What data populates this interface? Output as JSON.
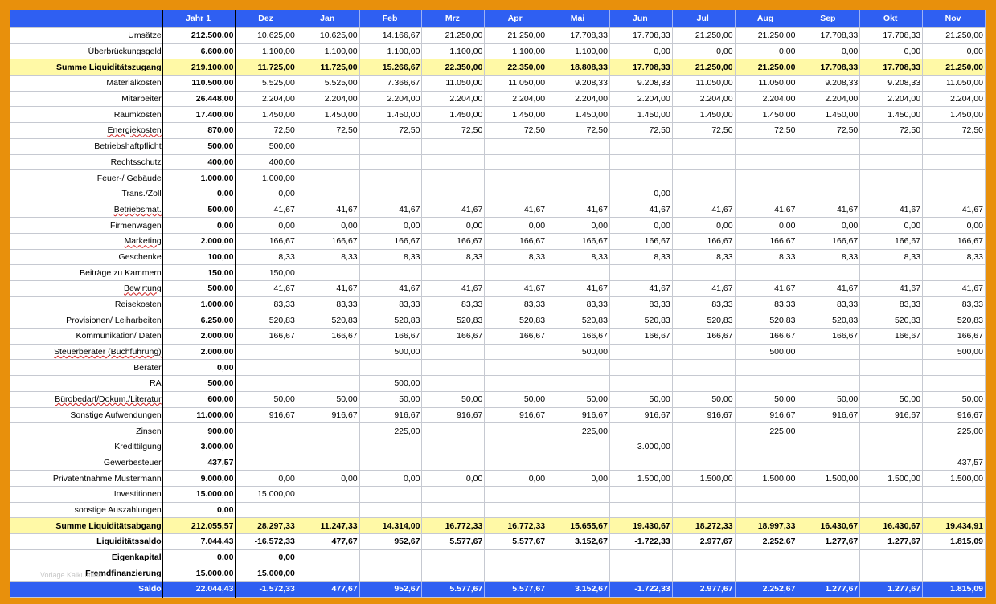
{
  "header": {
    "label": "",
    "columns": [
      "Jahr 1",
      "Dez",
      "Jan",
      "Feb",
      "Mrz",
      "Apr",
      "Mai",
      "Jun",
      "Jul",
      "Aug",
      "Sep",
      "Okt",
      "Nov"
    ]
  },
  "rows": [
    {
      "label": "Umsätze",
      "style": "normal",
      "values": [
        "212.500,00",
        "10.625,00",
        "10.625,00",
        "14.166,67",
        "21.250,00",
        "21.250,00",
        "17.708,33",
        "17.708,33",
        "21.250,00",
        "21.250,00",
        "17.708,33",
        "17.708,33",
        "21.250,00"
      ]
    },
    {
      "label": "Überbrückungsgeld",
      "style": "normal",
      "values": [
        "6.600,00",
        "1.100,00",
        "1.100,00",
        "1.100,00",
        "1.100,00",
        "1.100,00",
        "1.100,00",
        "0,00",
        "0,00",
        "0,00",
        "0,00",
        "0,00",
        "0,00"
      ]
    },
    {
      "label": "Summe Liquiditätszugang",
      "style": "sum",
      "values": [
        "219.100,00",
        "11.725,00",
        "11.725,00",
        "15.266,67",
        "22.350,00",
        "22.350,00",
        "18.808,33",
        "17.708,33",
        "21.250,00",
        "21.250,00",
        "17.708,33",
        "17.708,33",
        "21.250,00"
      ]
    },
    {
      "label": "Materialkosten",
      "style": "normal",
      "values": [
        "110.500,00",
        "5.525,00",
        "5.525,00",
        "7.366,67",
        "11.050,00",
        "11.050,00",
        "9.208,33",
        "9.208,33",
        "11.050,00",
        "11.050,00",
        "9.208,33",
        "9.208,33",
        "11.050,00"
      ]
    },
    {
      "label": "Mitarbeiter",
      "style": "normal",
      "values": [
        "26.448,00",
        "2.204,00",
        "2.204,00",
        "2.204,00",
        "2.204,00",
        "2.204,00",
        "2.204,00",
        "2.204,00",
        "2.204,00",
        "2.204,00",
        "2.204,00",
        "2.204,00",
        "2.204,00"
      ]
    },
    {
      "label": "Raumkosten",
      "style": "normal",
      "values": [
        "17.400,00",
        "1.450,00",
        "1.450,00",
        "1.450,00",
        "1.450,00",
        "1.450,00",
        "1.450,00",
        "1.450,00",
        "1.450,00",
        "1.450,00",
        "1.450,00",
        "1.450,00",
        "1.450,00"
      ]
    },
    {
      "label": "Energiekosten",
      "style": "normal",
      "values": [
        "870,00",
        "72,50",
        "72,50",
        "72,50",
        "72,50",
        "72,50",
        "72,50",
        "72,50",
        "72,50",
        "72,50",
        "72,50",
        "72,50",
        "72,50"
      ]
    },
    {
      "label": "Betriebshaftpflicht",
      "style": "normal",
      "values": [
        "500,00",
        "500,00",
        "",
        "",
        "",
        "",
        "",
        "",
        "",
        "",
        "",
        "",
        ""
      ]
    },
    {
      "label": "Rechtsschutz",
      "style": "normal",
      "values": [
        "400,00",
        "400,00",
        "",
        "",
        "",
        "",
        "",
        "",
        "",
        "",
        "",
        "",
        ""
      ]
    },
    {
      "label": "Feuer-/ Gebäude",
      "style": "normal",
      "values": [
        "1.000,00",
        "1.000,00",
        "",
        "",
        "",
        "",
        "",
        "",
        "",
        "",
        "",
        "",
        ""
      ]
    },
    {
      "label": "Trans./Zoll",
      "style": "normal",
      "values": [
        "0,00",
        "0,00",
        "",
        "",
        "",
        "",
        "",
        "0,00",
        "",
        "",
        "",
        "",
        ""
      ]
    },
    {
      "label": "Betriebsmat.",
      "style": "normal",
      "values": [
        "500,00",
        "41,67",
        "41,67",
        "41,67",
        "41,67",
        "41,67",
        "41,67",
        "41,67",
        "41,67",
        "41,67",
        "41,67",
        "41,67",
        "41,67"
      ]
    },
    {
      "label": "Firmenwagen",
      "style": "normal",
      "values": [
        "0,00",
        "0,00",
        "0,00",
        "0,00",
        "0,00",
        "0,00",
        "0,00",
        "0,00",
        "0,00",
        "0,00",
        "0,00",
        "0,00",
        "0,00"
      ]
    },
    {
      "label": "Marketing",
      "style": "normal",
      "values": [
        "2.000,00",
        "166,67",
        "166,67",
        "166,67",
        "166,67",
        "166,67",
        "166,67",
        "166,67",
        "166,67",
        "166,67",
        "166,67",
        "166,67",
        "166,67"
      ]
    },
    {
      "label": "Geschenke",
      "style": "normal",
      "values": [
        "100,00",
        "8,33",
        "8,33",
        "8,33",
        "8,33",
        "8,33",
        "8,33",
        "8,33",
        "8,33",
        "8,33",
        "8,33",
        "8,33",
        "8,33"
      ]
    },
    {
      "label": "Beiträge zu Kammern",
      "style": "normal",
      "values": [
        "150,00",
        "150,00",
        "",
        "",
        "",
        "",
        "",
        "",
        "",
        "",
        "",
        "",
        ""
      ]
    },
    {
      "label": "Bewirtung",
      "style": "normal",
      "values": [
        "500,00",
        "41,67",
        "41,67",
        "41,67",
        "41,67",
        "41,67",
        "41,67",
        "41,67",
        "41,67",
        "41,67",
        "41,67",
        "41,67",
        "41,67"
      ]
    },
    {
      "label": "Reisekosten",
      "style": "normal",
      "values": [
        "1.000,00",
        "83,33",
        "83,33",
        "83,33",
        "83,33",
        "83,33",
        "83,33",
        "83,33",
        "83,33",
        "83,33",
        "83,33",
        "83,33",
        "83,33"
      ]
    },
    {
      "label": "Provisionen/ Leiharbeiten",
      "style": "normal",
      "values": [
        "6.250,00",
        "520,83",
        "520,83",
        "520,83",
        "520,83",
        "520,83",
        "520,83",
        "520,83",
        "520,83",
        "520,83",
        "520,83",
        "520,83",
        "520,83"
      ]
    },
    {
      "label": "Kommunikation/ Daten",
      "style": "normal",
      "values": [
        "2.000,00",
        "166,67",
        "166,67",
        "166,67",
        "166,67",
        "166,67",
        "166,67",
        "166,67",
        "166,67",
        "166,67",
        "166,67",
        "166,67",
        "166,67"
      ]
    },
    {
      "label": "Steuerberater (Buchführung)",
      "style": "normal",
      "values": [
        "2.000,00",
        "",
        "",
        "500,00",
        "",
        "",
        "500,00",
        "",
        "",
        "500,00",
        "",
        "",
        "500,00"
      ]
    },
    {
      "label": "Berater",
      "style": "normal",
      "values": [
        "0,00",
        "",
        "",
        "",
        "",
        "",
        "",
        "",
        "",
        "",
        "",
        "",
        ""
      ]
    },
    {
      "label": "RA",
      "style": "normal",
      "values": [
        "500,00",
        "",
        "",
        "500,00",
        "",
        "",
        "",
        "",
        "",
        "",
        "",
        "",
        ""
      ]
    },
    {
      "label": "Bürobedarf/Dokum./Literatur",
      "style": "normal",
      "values": [
        "600,00",
        "50,00",
        "50,00",
        "50,00",
        "50,00",
        "50,00",
        "50,00",
        "50,00",
        "50,00",
        "50,00",
        "50,00",
        "50,00",
        "50,00"
      ]
    },
    {
      "label": "Sonstige Aufwendungen",
      "style": "normal",
      "values": [
        "11.000,00",
        "916,67",
        "916,67",
        "916,67",
        "916,67",
        "916,67",
        "916,67",
        "916,67",
        "916,67",
        "916,67",
        "916,67",
        "916,67",
        "916,67"
      ]
    },
    {
      "label": "Zinsen",
      "style": "normal",
      "values": [
        "900,00",
        "",
        "",
        "225,00",
        "",
        "",
        "225,00",
        "",
        "",
        "225,00",
        "",
        "",
        "225,00"
      ]
    },
    {
      "label": "Kredittilgung",
      "style": "normal",
      "values": [
        "3.000,00",
        "",
        "",
        "",
        "",
        "",
        "",
        "3.000,00",
        "",
        "",
        "",
        "",
        ""
      ]
    },
    {
      "label": "Gewerbesteuer",
      "style": "normal",
      "values": [
        "437,57",
        "",
        "",
        "",
        "",
        "",
        "",
        "",
        "",
        "",
        "",
        "",
        "437,57"
      ]
    },
    {
      "label": "Privatentnahme Mustermann",
      "style": "normal",
      "values": [
        "9.000,00",
        "0,00",
        "0,00",
        "0,00",
        "0,00",
        "0,00",
        "0,00",
        "1.500,00",
        "1.500,00",
        "1.500,00",
        "1.500,00",
        "1.500,00",
        "1.500,00"
      ]
    },
    {
      "label": "Investitionen",
      "style": "normal",
      "values": [
        "15.000,00",
        "15.000,00",
        "",
        "",
        "",
        "",
        "",
        "",
        "",
        "",
        "",
        "",
        ""
      ]
    },
    {
      "label": "sonstige Auszahlungen",
      "style": "normal",
      "values": [
        "0,00",
        "",
        "",
        "",
        "",
        "",
        "",
        "",
        "",
        "",
        "",
        "",
        ""
      ]
    },
    {
      "label": "Summe Liquiditätsabgang",
      "style": "sum",
      "values": [
        "212.055,57",
        "28.297,33",
        "11.247,33",
        "14.314,00",
        "16.772,33",
        "16.772,33",
        "15.655,67",
        "19.430,67",
        "18.272,33",
        "18.997,33",
        "16.430,67",
        "16.430,67",
        "19.434,91"
      ]
    },
    {
      "label": "Liquiditätssaldo",
      "style": "bold",
      "values": [
        "7.044,43",
        "-16.572,33",
        "477,67",
        "952,67",
        "5.577,67",
        "5.577,67",
        "3.152,67",
        "-1.722,33",
        "2.977,67",
        "2.252,67",
        "1.277,67",
        "1.277,67",
        "1.815,09"
      ]
    },
    {
      "label": "Eigenkapital",
      "style": "bold",
      "values": [
        "0,00",
        "0,00",
        "",
        "",
        "",
        "",
        "",
        "",
        "",
        "",
        "",
        "",
        ""
      ]
    },
    {
      "label": "Fremdfinanzierung",
      "style": "bold",
      "values": [
        "15.000,00",
        "15.000,00",
        "",
        "",
        "",
        "",
        "",
        "",
        "",
        "",
        "",
        "",
        ""
      ]
    },
    {
      "label": "Saldo",
      "style": "saldo",
      "values": [
        "22.044,43",
        "-1.572,33",
        "477,67",
        "952,67",
        "5.577,67",
        "5.577,67",
        "3.152,67",
        "-1.722,33",
        "2.977,67",
        "2.252,67",
        "1.277,67",
        "1.277,67",
        "1.815,09"
      ]
    }
  ],
  "watermark": "Vorlage Kalkulation"
}
